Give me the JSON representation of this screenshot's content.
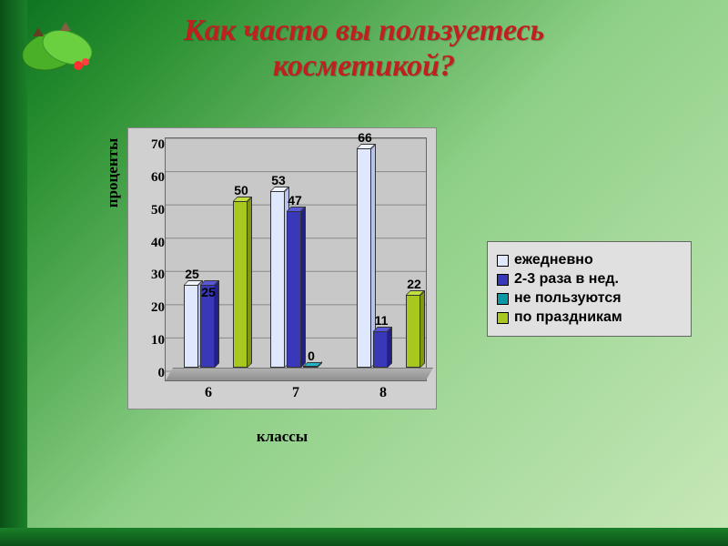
{
  "title_line1": "Как часто вы пользуетесь",
  "title_line2": "косметикой?",
  "title_color": "#c02020",
  "title_fontsize": 34,
  "chart": {
    "type": "bar-3d",
    "ylabel": "проценты",
    "xlabel": "классы",
    "ylim": [
      0,
      70
    ],
    "ytick_step": 10,
    "yticks": [
      "70",
      "60",
      "50",
      "40",
      "30",
      "20",
      "10",
      "0"
    ],
    "categories": [
      "6",
      "7",
      "8"
    ],
    "series": [
      {
        "name": "ежедневно",
        "color_front": "#e0e8ff",
        "color_top": "#f0f4ff",
        "color_side": "#b8c4ee"
      },
      {
        "name": "2-3 раза в нед.",
        "color_front": "#3838b8",
        "color_top": "#5858d8",
        "color_side": "#202088"
      },
      {
        "name": "не пользуются",
        "color_front": "#0898a8",
        "color_top": "#20b8c8",
        "color_side": "#046878"
      },
      {
        "name": "по праздникам",
        "color_front": "#a8c820",
        "color_top": "#c0e040",
        "color_side": "#809810"
      }
    ],
    "data": [
      [
        25,
        25,
        0,
        50
      ],
      [
        53,
        47,
        0,
        0
      ],
      [
        66,
        11,
        0,
        22
      ]
    ],
    "labels": [
      [
        "25",
        "25",
        "",
        "50"
      ],
      [
        "53",
        "47",
        "0",
        ""
      ],
      [
        "66",
        "11",
        "",
        "22"
      ]
    ],
    "background_color": "#d0d0d0",
    "plot_color": "#c8c8c8",
    "grid_color": "#888888"
  },
  "legend_bg": "#e0e0e0"
}
